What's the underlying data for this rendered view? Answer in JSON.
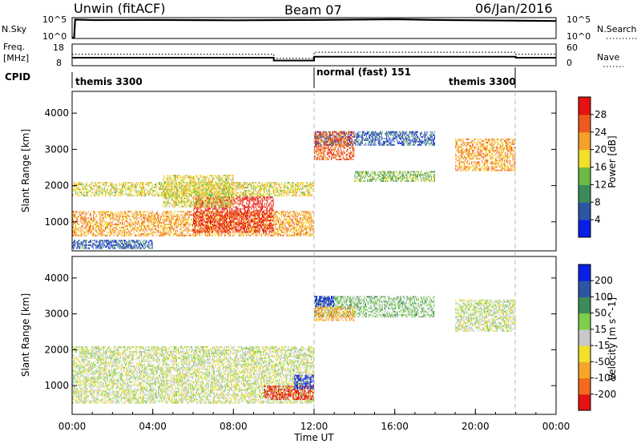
{
  "header": {
    "station": "Unwin (fitACF)",
    "beam": "Beam 07",
    "date": "06/Jan/2016"
  },
  "top_panels": {
    "nsky_label": "N.Sky",
    "nsky_ticks": [
      "10^5",
      "10^0"
    ],
    "nsearch_label": "N.Search",
    "nsearch_ticks": [
      "10^5",
      "10^0"
    ],
    "freq_label": "Freq.",
    "freq_unit": "[MHz]",
    "freq_ticks": [
      "18",
      "8"
    ],
    "nave_label": "Nave",
    "nave_ticks": [
      "60",
      "0"
    ],
    "cpid_label": "CPID",
    "cpid_segments": [
      {
        "label": "themis 3300",
        "start_hour": 0,
        "end_hour": 12
      },
      {
        "label": "normal (fast) 151",
        "start_hour": 12,
        "end_hour": 22
      },
      {
        "label": "themis 3300",
        "start_hour": 22,
        "end_hour": 24
      }
    ],
    "freq_series": [
      [
        0,
        11.6
      ],
      [
        0.2,
        11.6
      ],
      [
        10,
        11.6
      ],
      [
        10,
        10.2
      ],
      [
        12,
        10.2
      ],
      [
        12,
        12.1
      ],
      [
        22,
        12.1
      ],
      [
        22,
        11.6
      ],
      [
        24,
        11.6
      ]
    ],
    "nave_series": [
      [
        0,
        32
      ],
      [
        10,
        32
      ],
      [
        10,
        20
      ],
      [
        12,
        20
      ],
      [
        12,
        38
      ],
      [
        22,
        38
      ],
      [
        22,
        32
      ],
      [
        24,
        32
      ]
    ],
    "nsky_series": [
      [
        0,
        0
      ],
      [
        0.1,
        0
      ],
      [
        0.15,
        5.2
      ],
      [
        1,
        5.05
      ],
      [
        4,
        5.1
      ],
      [
        8,
        5.0
      ],
      [
        12,
        5.1
      ],
      [
        16,
        5.3
      ],
      [
        18,
        5.1
      ],
      [
        22,
        4.9
      ],
      [
        24,
        4.8
      ]
    ]
  },
  "chart_data": [
    {
      "type": "heatmap",
      "panel": "power",
      "ylabel": "Slant Range [km]",
      "yticks": [
        1000,
        2000,
        3000,
        4000
      ],
      "ylim": [
        200,
        4600
      ],
      "xlim": [
        0,
        24
      ],
      "colorbar_label": "Power [dB]",
      "colorbar_ticks": [
        "4",
        "8",
        "12",
        "16",
        "20",
        "24",
        "28"
      ],
      "colorbar_colors": [
        "#0a1ee6",
        "#2d55a5",
        "#3c8c5a",
        "#6cbb48",
        "#f0e02a",
        "#f6a12a",
        "#ee5a1e",
        "#e41212"
      ],
      "echo_regions": [
        {
          "t0": 0,
          "t1": 12,
          "r0": 1700,
          "r1": 2100,
          "level": 4
        },
        {
          "t0": 0,
          "t1": 12,
          "r0": 600,
          "r1": 1300,
          "level": 5
        },
        {
          "t0": 6,
          "t1": 10,
          "r0": 700,
          "r1": 1700,
          "level": 7
        },
        {
          "t0": 4.5,
          "t1": 8,
          "r0": 1400,
          "r1": 2300,
          "level": 4
        },
        {
          "t0": 0,
          "t1": 4,
          "r0": 250,
          "r1": 500,
          "level": 1
        },
        {
          "t0": 12,
          "t1": 18,
          "r0": 3100,
          "r1": 3500,
          "level": 1
        },
        {
          "t0": 12,
          "t1": 14,
          "r0": 2700,
          "r1": 3500,
          "level": 6
        },
        {
          "t0": 14,
          "t1": 18,
          "r0": 2100,
          "r1": 2400,
          "level": 3
        },
        {
          "t0": 19,
          "t1": 22,
          "r0": 2400,
          "r1": 3300,
          "level": 5
        }
      ]
    },
    {
      "type": "heatmap",
      "panel": "velocity",
      "ylabel": "Slant Range [km]",
      "yticks": [
        1000,
        2000,
        3000,
        4000
      ],
      "ylim": [
        200,
        4600
      ],
      "xlim": [
        0,
        24
      ],
      "xlabel": "Time UT",
      "xticks": [
        "00:00",
        "04:00",
        "08:00",
        "12:00",
        "16:00",
        "20:00",
        "00:00"
      ],
      "colorbar_label": "Velocity [m s^-1]",
      "colorbar_ticks": [
        "-200",
        "-100",
        "-50",
        "-15",
        "15",
        "50",
        "100",
        "200"
      ],
      "colorbar_colors": [
        "#e41212",
        "#f36a1e",
        "#f7a52a",
        "#f0e02a",
        "#c8c8c8",
        "#7dcf4a",
        "#3c8c5a",
        "#2d55a5",
        "#0a1ee6"
      ],
      "echo_regions": [
        {
          "t0": 0,
          "t1": 12,
          "r0": 500,
          "r1": 2100,
          "level": 4
        },
        {
          "t0": 9.5,
          "t1": 12,
          "r0": 600,
          "r1": 1000,
          "level": 0
        },
        {
          "t0": 11,
          "t1": 12,
          "r0": 900,
          "r1": 1300,
          "level": 8
        },
        {
          "t0": 12,
          "t1": 18,
          "r0": 2900,
          "r1": 3500,
          "level": 5
        },
        {
          "t0": 12,
          "t1": 14,
          "r0": 2800,
          "r1": 3200,
          "level": 2
        },
        {
          "t0": 12,
          "t1": 13,
          "r0": 3200,
          "r1": 3500,
          "level": 8
        },
        {
          "t0": 19,
          "t1": 22,
          "r0": 2500,
          "r1": 3400,
          "level": 4
        }
      ]
    }
  ]
}
